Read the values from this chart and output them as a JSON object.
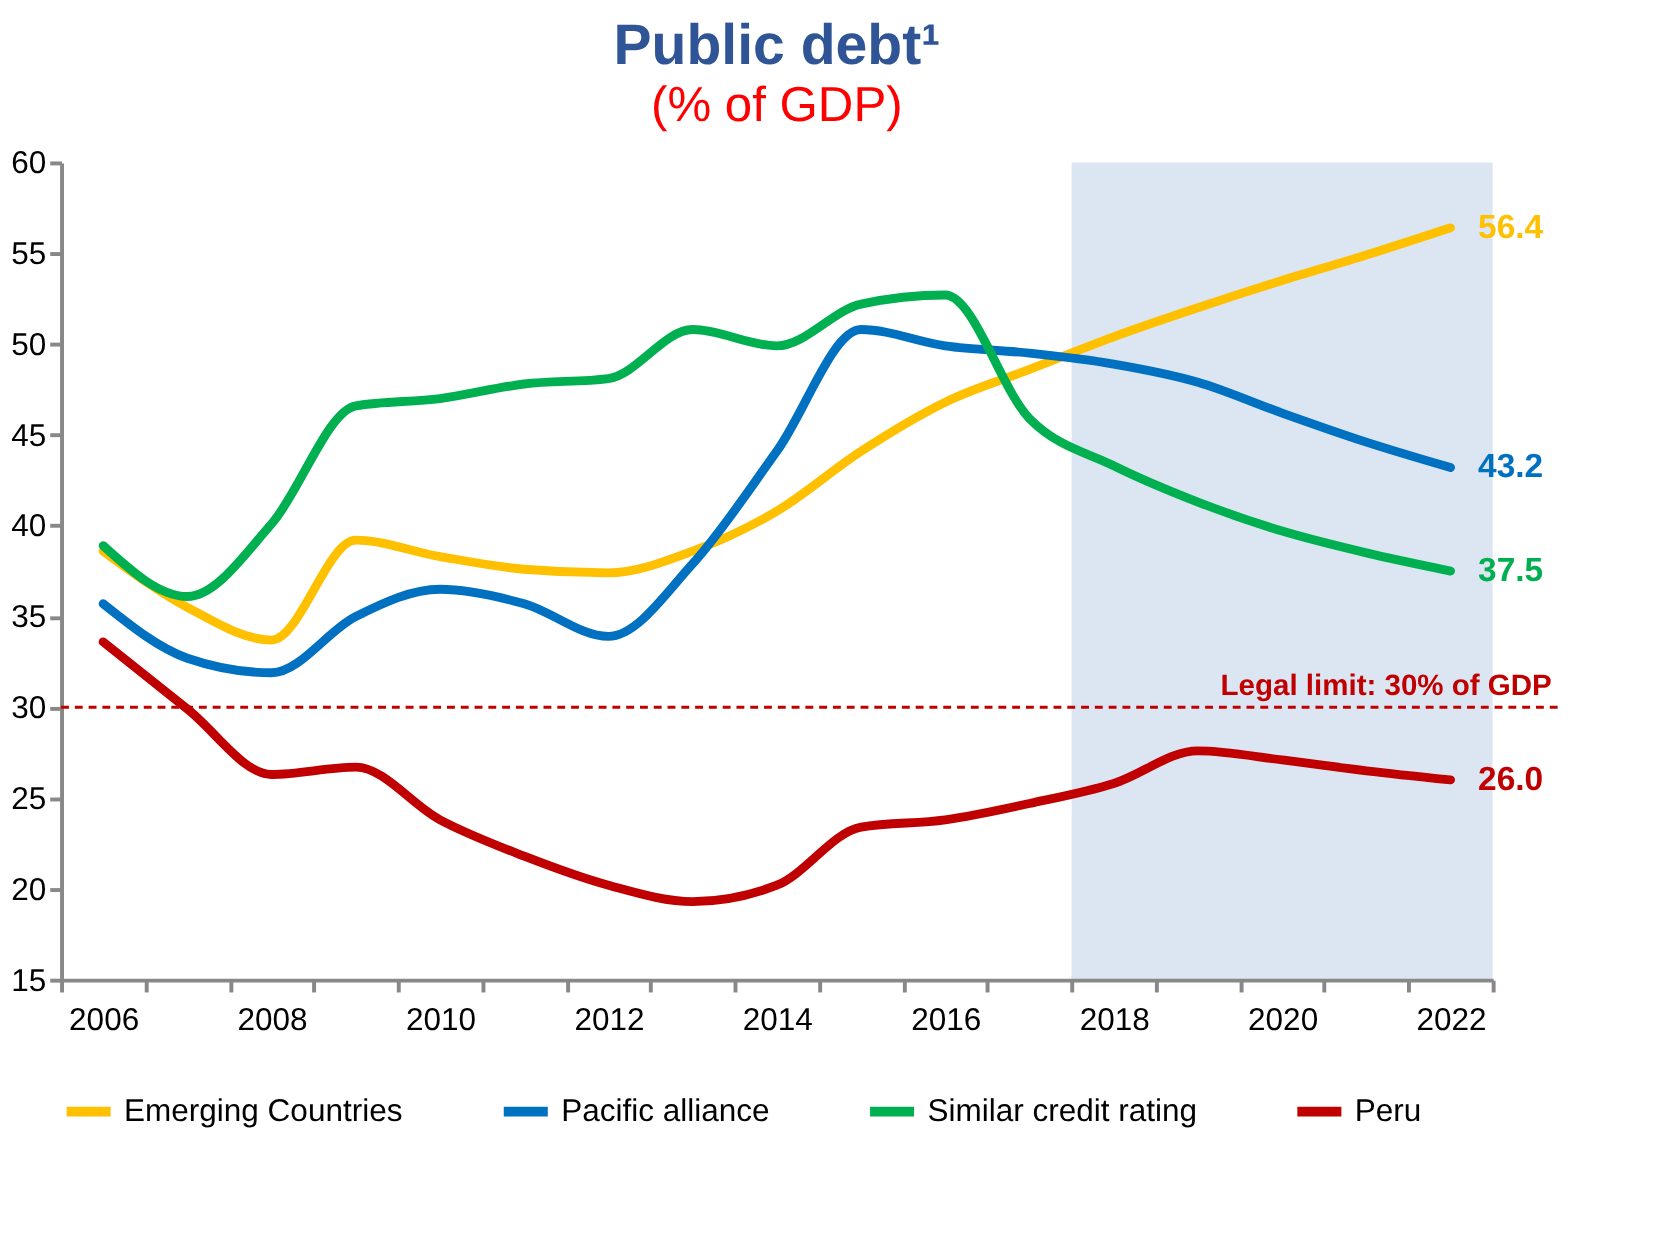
{
  "chart_data": {
    "type": "line",
    "title": "Public debt¹",
    "subtitle": "(% of GDP)",
    "categories": [
      "2006",
      null,
      "2008",
      null,
      "2010",
      null,
      "2012",
      null,
      "2014",
      null,
      "2016",
      null,
      "2018",
      null,
      "2020",
      null,
      "2022"
    ],
    "series": [
      {
        "name": "Emerging Countries",
        "color": "#ffc000",
        "values": [
          38.6,
          35.5,
          33.7,
          39.2,
          38.3,
          37.6,
          37.4,
          38.6,
          40.8,
          44.1,
          46.8,
          48.6,
          50.4,
          52.0,
          53.5,
          54.9,
          56.4
        ],
        "value_labels": [
          null,
          null,
          null,
          null,
          null,
          null,
          null,
          null,
          null,
          null,
          null,
          null,
          null,
          null,
          null,
          null,
          "56.4"
        ]
      },
      {
        "name": "Pacific alliance",
        "color": "#0070c0",
        "values": [
          35.7,
          32.7,
          31.9,
          35.0,
          36.5,
          35.7,
          33.9,
          37.9,
          44.1,
          50.8,
          49.9,
          49.5,
          48.9,
          47.9,
          46.2,
          44.6,
          43.2
        ],
        "value_labels": [
          null,
          null,
          null,
          null,
          null,
          null,
          null,
          null,
          null,
          null,
          null,
          null,
          null,
          null,
          null,
          null,
          "43.2"
        ]
      },
      {
        "name": "Similar credit rating",
        "color": "#00b050",
        "values": [
          38.9,
          36.1,
          40.1,
          46.6,
          47.0,
          47.8,
          48.1,
          50.8,
          49.9,
          52.2,
          52.7,
          45.9,
          43.3,
          41.3,
          39.7,
          38.5,
          37.5
        ],
        "value_labels": [
          null,
          null,
          null,
          null,
          null,
          null,
          null,
          null,
          null,
          null,
          null,
          null,
          null,
          null,
          null,
          null,
          "37.5"
        ]
      },
      {
        "name": "Peru",
        "color": "#c00000",
        "values": [
          33.6,
          29.9,
          26.3,
          26.7,
          23.8,
          21.8,
          20.2,
          19.3,
          20.2,
          23.4,
          23.8,
          24.7,
          25.8,
          27.6,
          27.1,
          26.5,
          26.0
        ],
        "value_labels": [
          null,
          null,
          null,
          null,
          null,
          null,
          null,
          null,
          null,
          null,
          null,
          null,
          null,
          null,
          null,
          null,
          "26.0"
        ]
      }
    ],
    "ylim": [
      15,
      60
    ],
    "yticks": [
      15,
      20,
      25,
      30,
      35,
      40,
      45,
      50,
      55,
      60
    ],
    "ref_lines": [
      {
        "axis": "y",
        "value": 30,
        "label": "Legal limit: 30% of GDP",
        "color": "#c00000",
        "line_style": "dashed"
      }
    ],
    "bands": [
      {
        "axis": "x",
        "from": "2018",
        "to": "2022",
        "color": "#dce6f2"
      }
    ],
    "grid": false,
    "legend": "bottom",
    "marker": "none",
    "line_style": "solid"
  }
}
